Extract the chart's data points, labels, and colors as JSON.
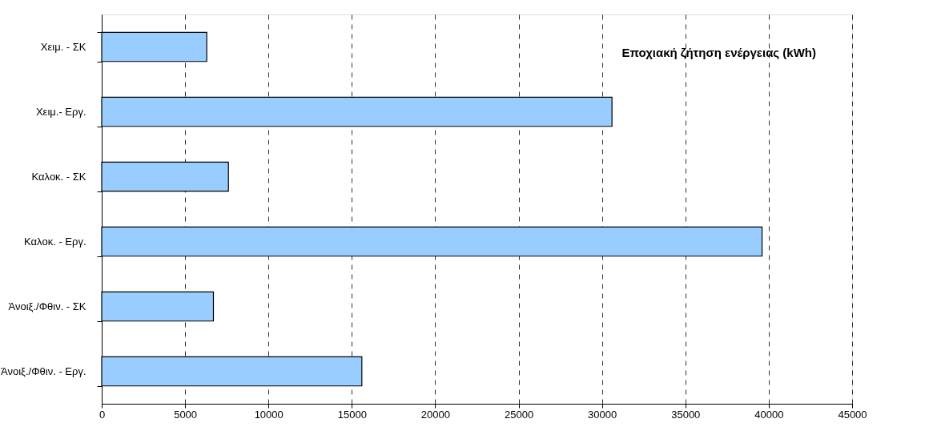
{
  "chart_data": {
    "type": "bar",
    "orientation": "horizontal",
    "title": "Εποχιακή ζήτηση ενέργειας (kWh)",
    "categories": [
      "Χειμ. - ΣΚ",
      "Χειμ.- Εργ.",
      "Καλοκ. - ΣΚ",
      "Καλοκ. - Εργ.",
      "Άνοιξ./Φθιν. - ΣΚ",
      "Άνοιξ./Φθιν. - Εργ."
    ],
    "values": [
      6300,
      30600,
      7600,
      39600,
      6700,
      15600
    ],
    "color": "#99ccff",
    "xlim": [
      0,
      45000
    ],
    "xticks": [
      0,
      5000,
      10000,
      15000,
      20000,
      25000,
      30000,
      35000,
      40000,
      45000
    ],
    "grid": "x"
  }
}
